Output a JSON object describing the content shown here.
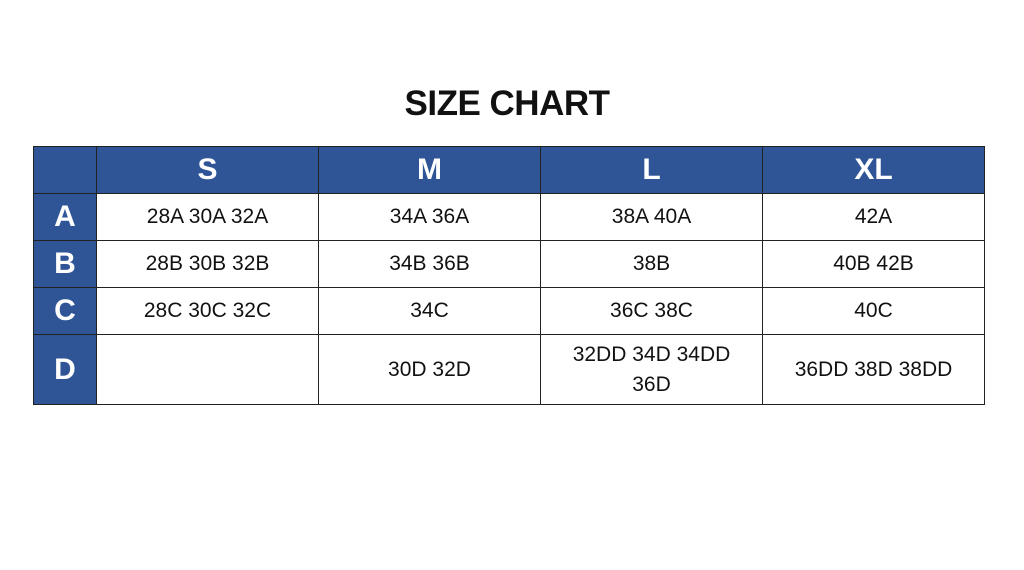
{
  "title": "SIZE CHART",
  "accent_color": "#2f5597",
  "columns": [
    "",
    "S",
    "M",
    "L",
    "XL"
  ],
  "rows": [
    {
      "label": "A",
      "cells": [
        "28A 30A 32A",
        "34A 36A",
        "38A 40A",
        "42A"
      ]
    },
    {
      "label": "B",
      "cells": [
        "28B 30B 32B",
        "34B 36B",
        "38B",
        "40B 42B"
      ]
    },
    {
      "label": "C",
      "cells": [
        "28C 30C 32C",
        "34C",
        "36C 38C",
        "40C"
      ]
    },
    {
      "label": "D",
      "cells": [
        "",
        "30D 32D",
        "32DD 34D 34DD 36D",
        "36DD 38D 38DD"
      ]
    }
  ]
}
